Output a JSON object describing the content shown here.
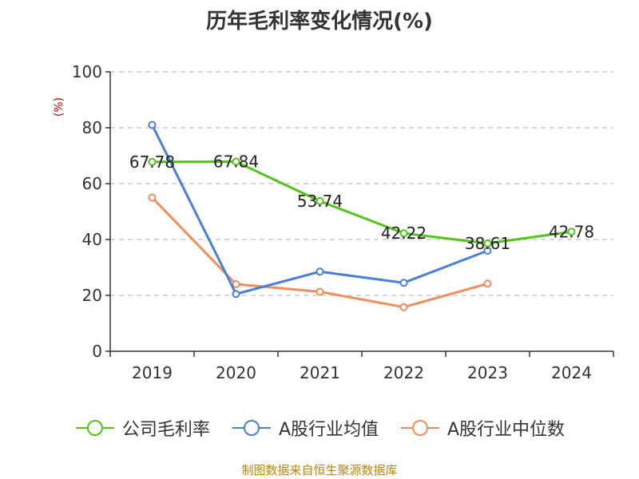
{
  "chart_data": {
    "type": "line",
    "title": "历年毛利率变化情况(%)",
    "ylabel": "(%)",
    "xlabel": "",
    "ylim": [
      0,
      100
    ],
    "yticks": [
      0,
      20,
      40,
      60,
      80,
      100
    ],
    "grid": true,
    "legend_position": "bottom",
    "categories": [
      "2019",
      "2020",
      "2021",
      "2022",
      "2023",
      "2024"
    ],
    "series": [
      {
        "name": "公司毛利率",
        "color": "#52c41a",
        "values": [
          67.78,
          67.84,
          53.74,
          42.22,
          38.61,
          42.78
        ],
        "labels": [
          "67.78",
          "67.84",
          "53.74",
          "42.22",
          "38.61",
          "42.78"
        ]
      },
      {
        "name": "A股行业均值",
        "color": "#4a7fd8",
        "values": [
          81.0,
          20.5,
          28.5,
          24.5,
          36.0,
          null
        ]
      },
      {
        "name": "A股行业中位数",
        "color": "#f28c5a",
        "values": [
          55.0,
          24.0,
          21.3,
          15.8,
          24.2,
          null
        ]
      }
    ]
  },
  "footer": {
    "source": "制图数据来自恒生聚源数据库"
  }
}
